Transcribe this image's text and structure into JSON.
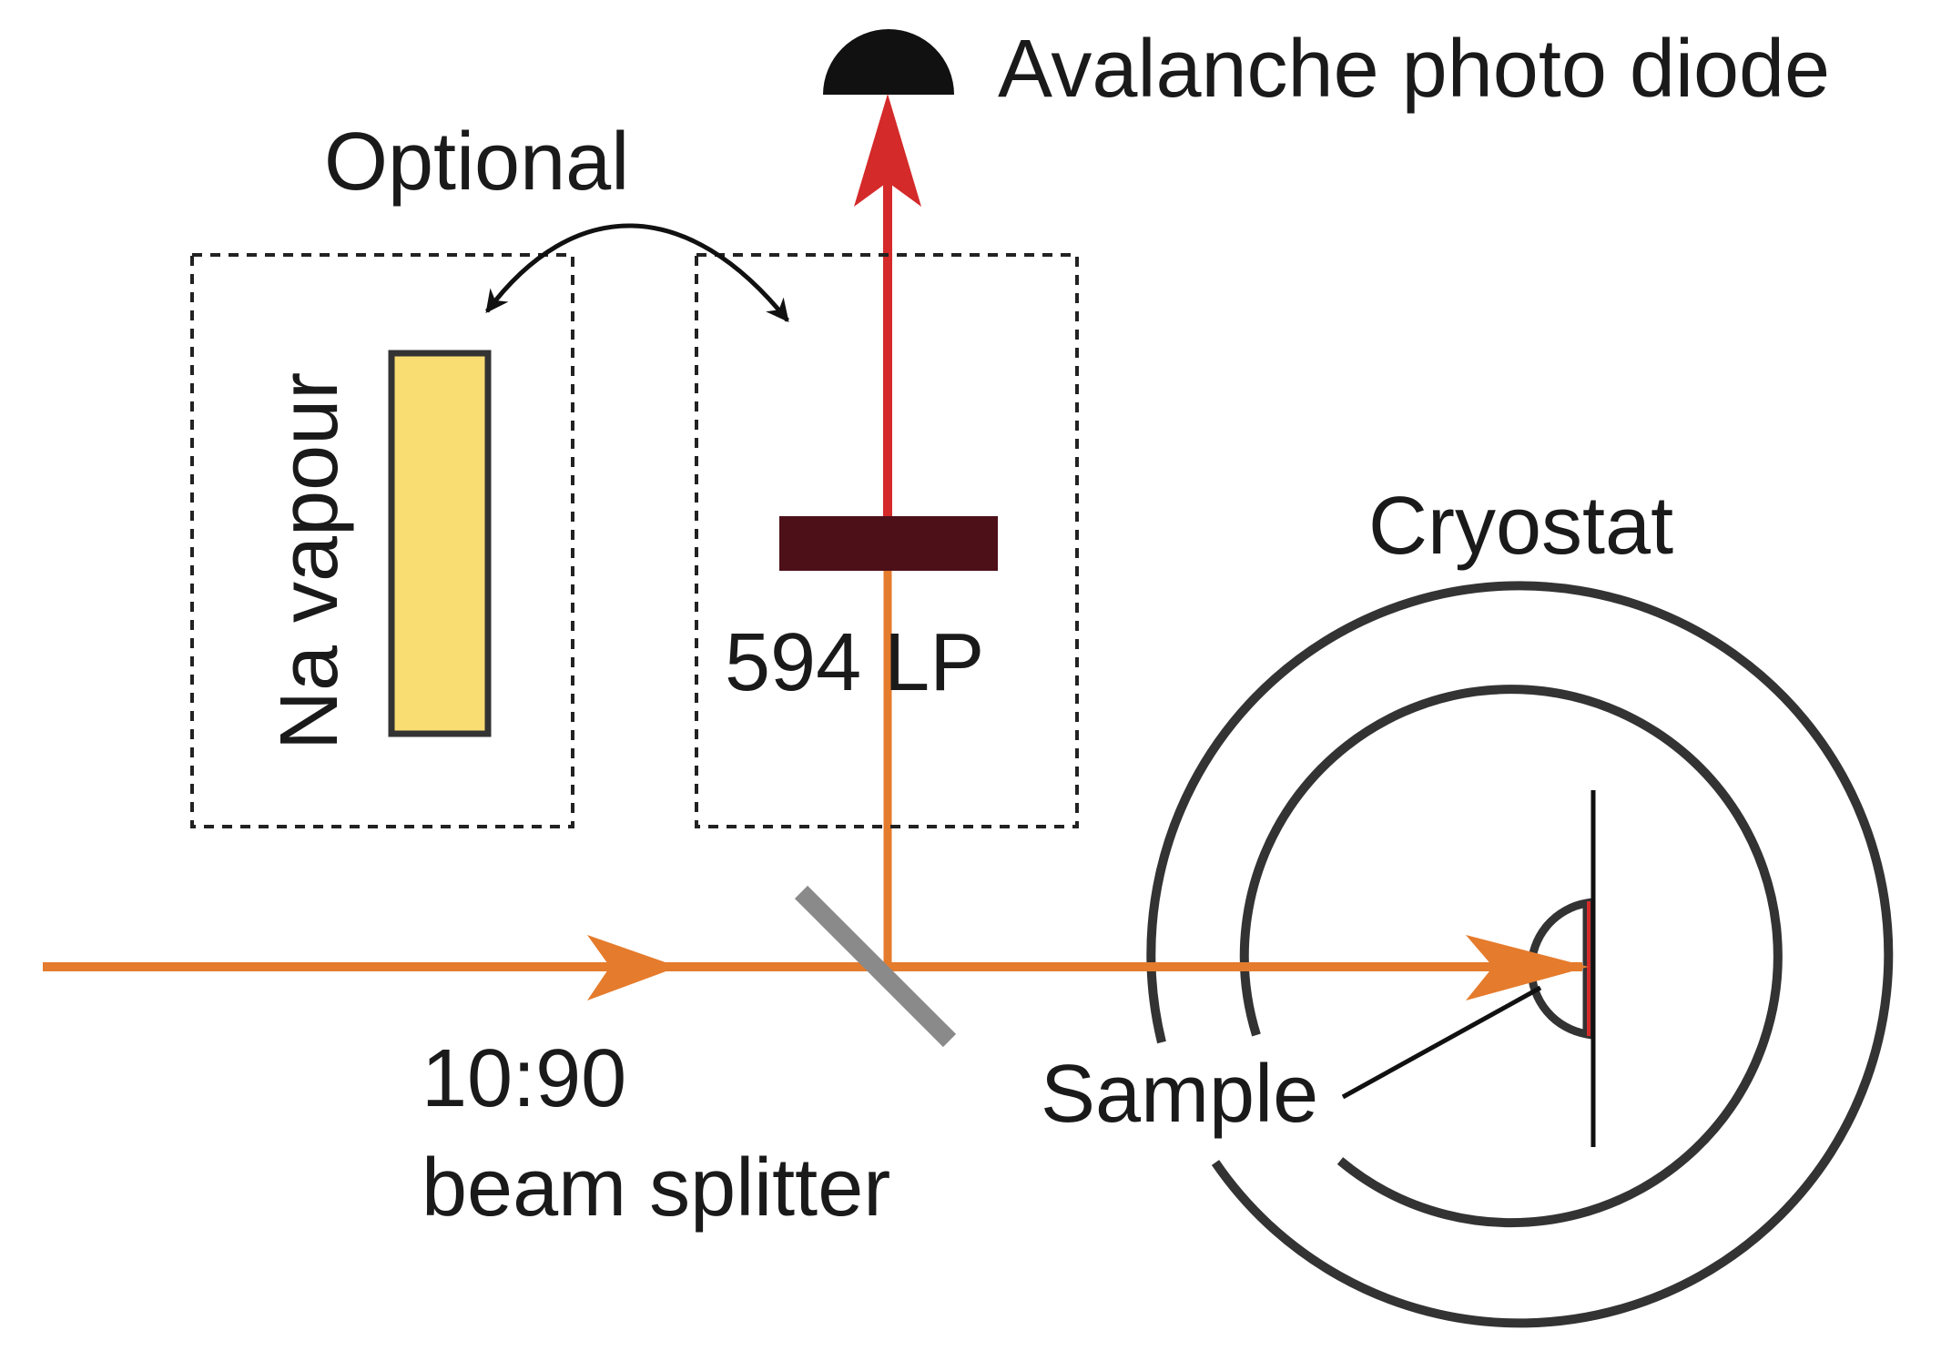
{
  "labels": {
    "detector": "Avalanche photo diode",
    "optional": "Optional",
    "na_vapour": "Na vapour",
    "filter": "594 LP",
    "cryostat": "Cryostat",
    "splitter_ratio": "10:90",
    "splitter_name": "beam splitter",
    "sample": "Sample"
  },
  "colors": {
    "excitation_beam": "#e57b2c",
    "emission_beam": "#d42a2a",
    "vapour_cell": "#f9dd73",
    "filter": "#4d1018",
    "splitter": "#8a8a8a",
    "cryostat": "#333333",
    "detector": "#111111",
    "text": "#1a1a1a"
  }
}
